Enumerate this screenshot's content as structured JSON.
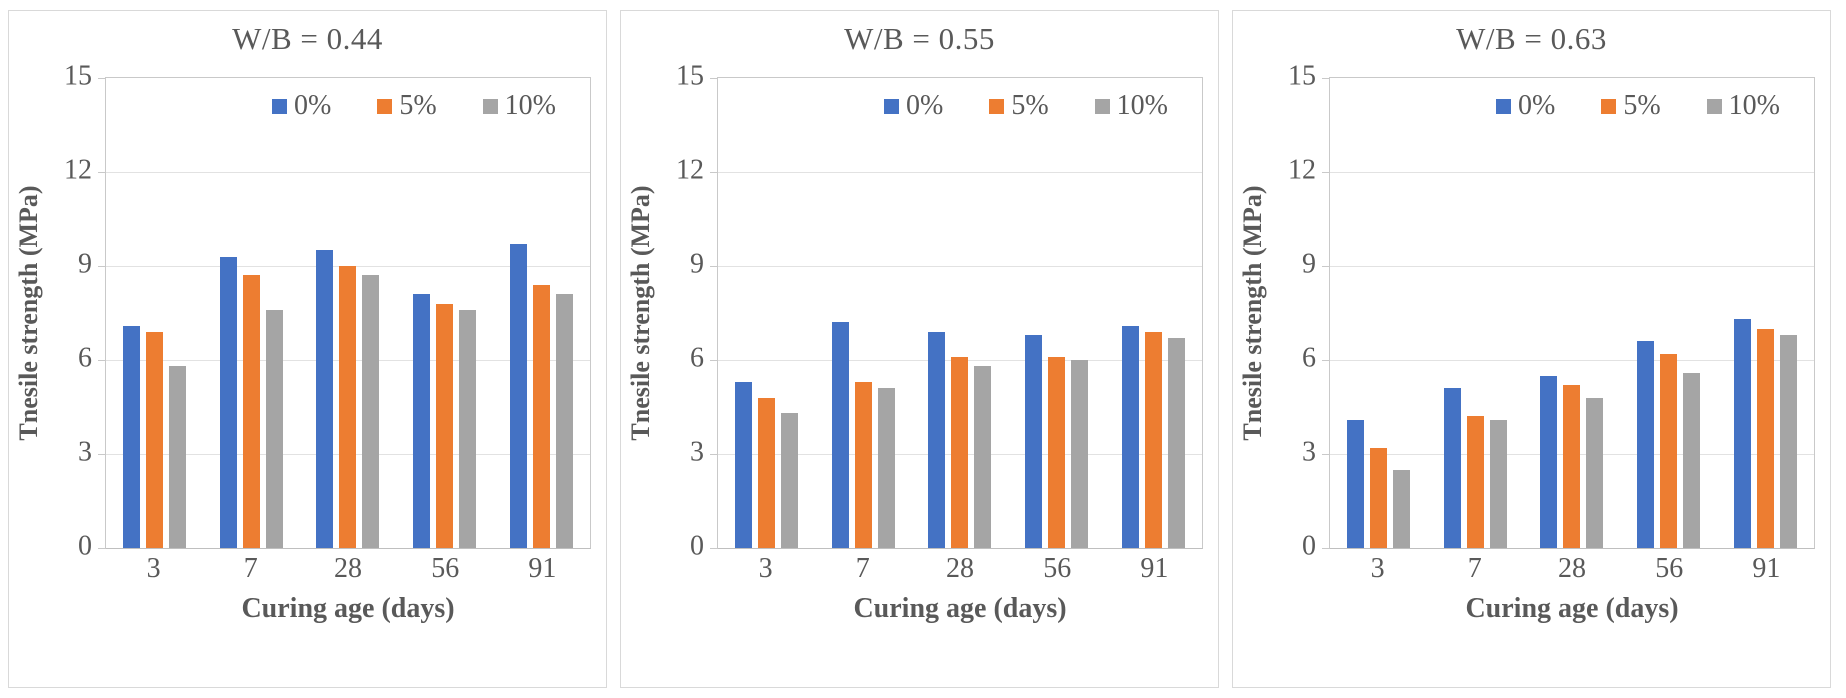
{
  "page": {
    "background": "#ffffff",
    "text_color": "#595959",
    "gridline_color": "#e2e2e2",
    "frame_color": "#c9c9c9"
  },
  "legend": {
    "labels": [
      "0%",
      "5%",
      "10%"
    ],
    "position": "top-right"
  },
  "series_colors": {
    "0%": "#4472C4",
    "5%": "#ED7D31",
    "10%": "#A5A5A5"
  },
  "chart_data": [
    {
      "type": "bar",
      "title": "W/B = 0.44",
      "xlabel": "Curing age (days)",
      "ylabel": "Tnesile strength (MPa)",
      "categories": [
        "3",
        "7",
        "28",
        "56",
        "91"
      ],
      "series": [
        {
          "name": "0%",
          "color": "#4472C4",
          "values": [
            7.1,
            9.3,
            9.5,
            8.1,
            9.7
          ]
        },
        {
          "name": "5%",
          "color": "#ED7D31",
          "values": [
            6.9,
            8.7,
            9.0,
            7.8,
            8.4
          ]
        },
        {
          "name": "10%",
          "color": "#A5A5A5",
          "values": [
            5.8,
            7.6,
            8.7,
            7.6,
            8.1
          ]
        }
      ],
      "ylim": [
        0,
        15
      ],
      "y_ticks": [
        15,
        12,
        9,
        6,
        3,
        0
      ],
      "gridlines": [
        12,
        9,
        6,
        3
      ],
      "grid": true,
      "legend_position": "top-right"
    },
    {
      "type": "bar",
      "title": "W/B = 0.55",
      "xlabel": "Curing age (days)",
      "ylabel": "Tnesile strength (MPa)",
      "categories": [
        "3",
        "7",
        "28",
        "56",
        "91"
      ],
      "series": [
        {
          "name": "0%",
          "color": "#4472C4",
          "values": [
            5.3,
            7.2,
            6.9,
            6.8,
            7.1
          ]
        },
        {
          "name": "5%",
          "color": "#ED7D31",
          "values": [
            4.8,
            5.3,
            6.1,
            6.1,
            6.9
          ]
        },
        {
          "name": "10%",
          "color": "#A5A5A5",
          "values": [
            4.3,
            5.1,
            5.8,
            6.0,
            6.7
          ]
        }
      ],
      "ylim": [
        0,
        15
      ],
      "y_ticks": [
        15,
        12,
        9,
        6,
        3,
        0
      ],
      "gridlines": [
        12,
        9,
        6,
        3
      ],
      "grid": true,
      "legend_position": "top-right"
    },
    {
      "type": "bar",
      "title": "W/B = 0.63",
      "xlabel": "Curing age (days)",
      "ylabel": "Tnesile strength (MPa)",
      "categories": [
        "3",
        "7",
        "28",
        "56",
        "91"
      ],
      "series": [
        {
          "name": "0%",
          "color": "#4472C4",
          "values": [
            4.1,
            5.1,
            5.5,
            6.6,
            7.3
          ]
        },
        {
          "name": "5%",
          "color": "#ED7D31",
          "values": [
            3.2,
            4.2,
            5.2,
            6.2,
            7.0
          ]
        },
        {
          "name": "10%",
          "color": "#A5A5A5",
          "values": [
            2.5,
            4.1,
            4.8,
            5.6,
            6.8
          ]
        }
      ],
      "ylim": [
        0,
        15
      ],
      "y_ticks": [
        15,
        12,
        9,
        6,
        3,
        0
      ],
      "gridlines": [
        12,
        9,
        6,
        3
      ],
      "grid": true,
      "legend_position": "top-right"
    }
  ]
}
